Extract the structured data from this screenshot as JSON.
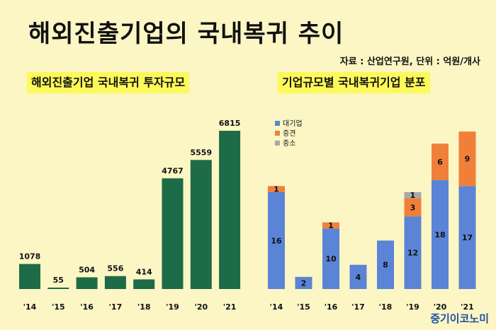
{
  "title": "해외진출기업의 국내복귀 추이",
  "source_note": "자료 : 산업연구원, 단위 : 억원/개사",
  "brand": "중기이코노미",
  "colors": {
    "background": "#fbf6c4",
    "highlight": "#fdf95a",
    "investment_bar": "#1d6b47",
    "large": "#5b84d6",
    "mid": "#f07f3a",
    "small": "#a9a9a9"
  },
  "chart_data": [
    {
      "type": "bar",
      "title": "해외진출기업 국내복귀 투자규모",
      "categories": [
        "'14",
        "'15",
        "'16",
        "'17",
        "'18",
        "'19",
        "'20",
        "'21"
      ],
      "values": [
        1078,
        55,
        504,
        556,
        414,
        4767,
        5559,
        6815
      ],
      "ylim": [
        0,
        7000
      ]
    },
    {
      "type": "bar",
      "stacked": true,
      "title": "기업규모별 국내복귀기업 분포",
      "categories": [
        "'14",
        "'15",
        "'16",
        "'17",
        "'18",
        "'19",
        "'20",
        "'21"
      ],
      "series": [
        {
          "name": "대기업",
          "values": [
            16,
            2,
            10,
            4,
            8,
            12,
            18,
            17
          ]
        },
        {
          "name": "중견",
          "values": [
            1,
            0,
            1,
            0,
            0,
            3,
            6,
            9
          ]
        },
        {
          "name": "중소",
          "values": [
            0,
            0,
            0,
            0,
            0,
            1,
            0,
            0
          ]
        }
      ],
      "legend_position": "top-left",
      "ylim": [
        0,
        28
      ]
    }
  ]
}
